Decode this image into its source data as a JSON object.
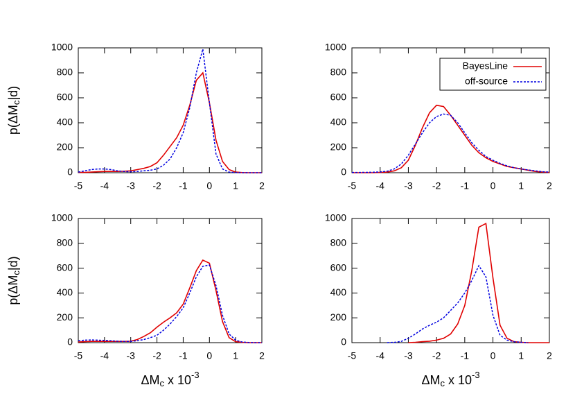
{
  "chart_data": [
    {
      "type": "line",
      "ylabel": [
        "p(ΔM",
        "c",
        "|d)"
      ],
      "x": [
        -5,
        -4.75,
        -4.5,
        -4.25,
        -4,
        -3.75,
        -3.5,
        -3.25,
        -3,
        -2.75,
        -2.5,
        -2.25,
        -2,
        -1.75,
        -1.5,
        -1.25,
        -1,
        -0.75,
        -0.5,
        -0.25,
        0,
        0.25,
        0.5,
        0.75,
        1,
        1.25,
        1.5,
        1.75,
        2
      ],
      "series": [
        {
          "color": "#e00000",
          "values": [
            2,
            3,
            5,
            8,
            10,
            10,
            10,
            12,
            15,
            25,
            35,
            50,
            80,
            140,
            210,
            280,
            380,
            540,
            740,
            800,
            560,
            260,
            90,
            25,
            5,
            1,
            0,
            0,
            0
          ]
        },
        {
          "color": "#0000e0",
          "values": [
            5,
            15,
            25,
            30,
            30,
            25,
            15,
            10,
            8,
            10,
            15,
            20,
            30,
            60,
            110,
            200,
            320,
            520,
            800,
            990,
            560,
            150,
            30,
            5,
            1,
            0,
            0,
            0,
            0
          ]
        }
      ],
      "xlim": [
        -5,
        2
      ],
      "ylim": [
        0,
        1000
      ],
      "xticks": [
        -5,
        -4,
        -3,
        -2,
        -1,
        0,
        1,
        2
      ],
      "yticks": [
        0,
        200,
        400,
        600,
        800,
        1000
      ]
    },
    {
      "type": "line",
      "legend": "upper right",
      "x": [
        -5,
        -4.75,
        -4.5,
        -4.25,
        -4,
        -3.75,
        -3.5,
        -3.25,
        -3,
        -2.75,
        -2.5,
        -2.25,
        -2,
        -1.75,
        -1.5,
        -1.25,
        -1,
        -0.75,
        -0.5,
        -0.25,
        0,
        0.25,
        0.5,
        0.75,
        1,
        1.25,
        1.5,
        1.75,
        2
      ],
      "series": [
        {
          "name": "BayesLine",
          "color": "#e00000",
          "values": [
            0,
            0,
            0,
            0,
            2,
            5,
            15,
            40,
            100,
            220,
            360,
            480,
            540,
            530,
            460,
            380,
            300,
            220,
            160,
            120,
            90,
            70,
            50,
            40,
            30,
            20,
            10,
            5,
            2
          ]
        },
        {
          "name": "off-source",
          "color": "#0000e0",
          "values": [
            2,
            2,
            3,
            4,
            6,
            12,
            30,
            70,
            140,
            230,
            320,
            400,
            450,
            470,
            460,
            400,
            320,
            240,
            180,
            130,
            100,
            75,
            55,
            40,
            30,
            22,
            15,
            8,
            5
          ]
        }
      ],
      "xlim": [
        -5,
        2
      ],
      "ylim": [
        0,
        1000
      ],
      "xticks": [
        -5,
        -4,
        -3,
        -2,
        -1,
        0,
        1,
        2
      ],
      "yticks": [
        0,
        200,
        400,
        600,
        800,
        1000
      ]
    },
    {
      "type": "line",
      "ylabel": [
        "p(ΔM",
        "c",
        "|d)"
      ],
      "xlabel": [
        "ΔM",
        "c",
        " x 10",
        "-3"
      ],
      "x": [
        -5,
        -4.75,
        -4.5,
        -4.25,
        -4,
        -3.75,
        -3.5,
        -3.25,
        -3,
        -2.75,
        -2.5,
        -2.25,
        -2,
        -1.75,
        -1.5,
        -1.25,
        -1,
        -0.75,
        -0.5,
        -0.25,
        0,
        0.25,
        0.5,
        0.75,
        1,
        1.25,
        1.5,
        1.75,
        2
      ],
      "series": [
        {
          "color": "#e00000",
          "values": [
            5,
            8,
            10,
            10,
            10,
            10,
            10,
            10,
            12,
            25,
            50,
            80,
            125,
            165,
            200,
            240,
            310,
            440,
            580,
            665,
            640,
            420,
            170,
            40,
            8,
            2,
            0,
            0,
            0
          ]
        },
        {
          "color": "#0000e0",
          "values": [
            15,
            20,
            22,
            20,
            18,
            15,
            12,
            10,
            10,
            15,
            25,
            40,
            60,
            100,
            150,
            210,
            280,
            400,
            530,
            615,
            625,
            460,
            220,
            70,
            20,
            5,
            1,
            0,
            0
          ]
        }
      ],
      "xlim": [
        -5,
        2
      ],
      "ylim": [
        0,
        1000
      ],
      "xticks": [
        -5,
        -4,
        -3,
        -2,
        -1,
        0,
        1,
        2
      ],
      "yticks": [
        0,
        200,
        400,
        600,
        800,
        1000
      ]
    },
    {
      "type": "line",
      "xlabel": [
        "ΔM",
        "c",
        " x 10",
        "-3"
      ],
      "x": [
        -5,
        -4.75,
        -4.5,
        -4.25,
        -4,
        -3.75,
        -3.5,
        -3.25,
        -3,
        -2.75,
        -2.5,
        -2.25,
        -2,
        -1.75,
        -1.5,
        -1.25,
        -1,
        -0.75,
        -0.5,
        -0.25,
        0,
        0.25,
        0.5,
        0.75,
        1,
        1.25,
        1.5,
        1.75,
        2
      ],
      "series": [
        {
          "color": "#e00000",
          "values": [
            null,
            null,
            null,
            null,
            null,
            null,
            null,
            null,
            0,
            3,
            8,
            12,
            20,
            35,
            70,
            150,
            300,
            580,
            930,
            960,
            520,
            140,
            35,
            8,
            2,
            0,
            0,
            0,
            0
          ]
        },
        {
          "color": "#0000e0",
          "values": [
            null,
            null,
            null,
            null,
            null,
            0,
            2,
            10,
            35,
            70,
            110,
            140,
            165,
            200,
            260,
            320,
            400,
            500,
            620,
            530,
            220,
            60,
            20,
            8,
            3,
            0,
            null,
            null,
            null
          ]
        }
      ],
      "xlim": [
        -5,
        2
      ],
      "ylim": [
        0,
        1000
      ],
      "xticks": [
        -5,
        -4,
        -3,
        -2,
        -1,
        0,
        1,
        2
      ],
      "yticks": [
        0,
        200,
        400,
        600,
        800,
        1000
      ]
    }
  ]
}
